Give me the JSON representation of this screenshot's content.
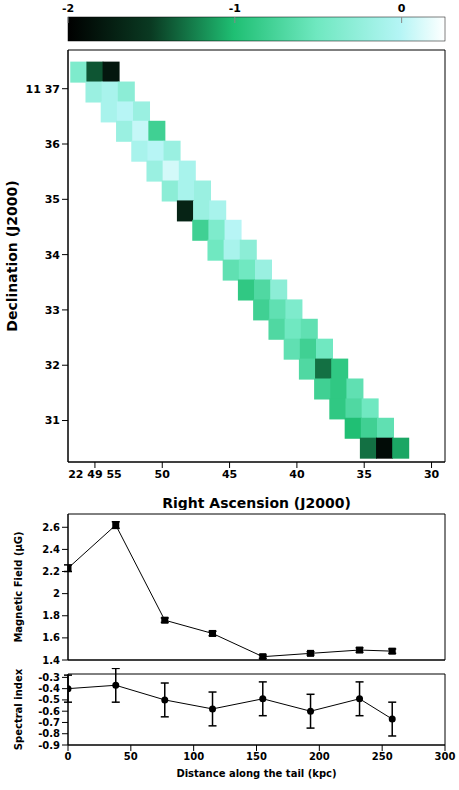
{
  "chart_data": [
    {
      "type": "heatmap",
      "xlabel": "Right Ascension (J2000)",
      "ylabel": "Declination (J2000)",
      "xlim": [
        57,
        29
      ],
      "xticks": [
        {
          "value": 55,
          "label": "22 49 55"
        },
        50,
        45,
        40,
        35,
        30
      ],
      "ylim": [
        30.25,
        37.7
      ],
      "yticks": [
        31,
        32,
        33,
        34,
        35,
        36,
        {
          "value": 37,
          "label": "11 37"
        }
      ],
      "colorbar": {
        "range": [
          -2,
          0.26
        ],
        "ticks": [
          -2,
          -1,
          0
        ]
      },
      "cells": [
        [
          56.2,
          37.3,
          -0.4
        ],
        [
          55.0,
          37.3,
          -1.4
        ],
        [
          53.8,
          37.3,
          -1.8
        ],
        [
          55.07,
          36.94,
          -0.2
        ],
        [
          53.87,
          36.94,
          -0.1
        ],
        [
          52.67,
          36.94,
          -0.3
        ],
        [
          53.94,
          36.58,
          -0.1
        ],
        [
          52.74,
          36.58,
          0.0
        ],
        [
          51.54,
          36.58,
          -0.2
        ],
        [
          52.8,
          36.23,
          -0.2
        ],
        [
          51.6,
          36.23,
          0.05
        ],
        [
          50.4,
          36.23,
          -0.8
        ],
        [
          51.67,
          35.87,
          -0.1
        ],
        [
          50.47,
          35.87,
          0.0
        ],
        [
          49.27,
          35.87,
          -0.2
        ],
        [
          50.54,
          35.51,
          -0.2
        ],
        [
          49.34,
          35.51,
          0.1
        ],
        [
          48.14,
          35.51,
          -0.1
        ],
        [
          49.41,
          35.15,
          -0.3
        ],
        [
          48.21,
          35.15,
          -0.1
        ],
        [
          47.01,
          35.15,
          -0.2
        ],
        [
          48.28,
          34.79,
          -1.7
        ],
        [
          47.08,
          34.79,
          -0.2
        ],
        [
          45.88,
          34.79,
          -0.1
        ],
        [
          47.14,
          34.44,
          -0.8
        ],
        [
          45.94,
          34.44,
          -0.4
        ],
        [
          44.74,
          34.44,
          0.0
        ],
        [
          46.01,
          34.08,
          -0.5
        ],
        [
          44.81,
          34.08,
          -0.1
        ],
        [
          43.61,
          34.08,
          -0.3
        ],
        [
          44.88,
          33.72,
          -0.6
        ],
        [
          43.68,
          33.72,
          -0.5
        ],
        [
          42.48,
          33.72,
          -0.2
        ],
        [
          43.75,
          33.36,
          -0.9
        ],
        [
          42.55,
          33.36,
          -0.7
        ],
        [
          41.35,
          33.36,
          -0.3
        ],
        [
          42.62,
          33.0,
          -0.8
        ],
        [
          41.42,
          33.0,
          -0.6
        ],
        [
          40.22,
          33.0,
          -0.4
        ],
        [
          41.48,
          32.65,
          -0.7
        ],
        [
          40.28,
          32.65,
          -0.5
        ],
        [
          39.08,
          32.65,
          -0.6
        ],
        [
          40.35,
          32.29,
          -0.6
        ],
        [
          39.15,
          32.29,
          -0.8
        ],
        [
          37.95,
          32.29,
          -0.5
        ],
        [
          39.22,
          31.93,
          -0.7
        ],
        [
          38.02,
          31.93,
          -1.3
        ],
        [
          36.82,
          31.93,
          -0.9
        ],
        [
          38.09,
          31.57,
          -0.8
        ],
        [
          36.89,
          31.57,
          -0.9
        ],
        [
          35.69,
          31.57,
          -0.6
        ],
        [
          36.96,
          31.21,
          -0.9
        ],
        [
          35.76,
          31.21,
          -0.7
        ],
        [
          34.56,
          31.21,
          -0.5
        ],
        [
          35.82,
          30.86,
          -1.0
        ],
        [
          34.62,
          30.86,
          -0.8
        ],
        [
          33.42,
          30.86,
          -0.6
        ],
        [
          34.69,
          30.5,
          -1.3
        ],
        [
          33.49,
          30.5,
          -1.9
        ],
        [
          32.29,
          30.5,
          -1.1
        ]
      ]
    },
    {
      "type": "line",
      "ylabel": "Magnetic Field (μG)",
      "xlim": [
        0,
        300
      ],
      "xticks": [
        0,
        50,
        100,
        150,
        200,
        250,
        300
      ],
      "ylim": [
        1.4,
        2.72
      ],
      "yticks": [
        1.4,
        1.6,
        1.8,
        2,
        2.2,
        2.4,
        2.6
      ],
      "tick_labels": "y",
      "x": [
        0,
        38,
        77,
        115,
        155,
        193,
        232,
        258
      ],
      "values": [
        2.23,
        2.62,
        1.76,
        1.64,
        1.43,
        1.46,
        1.49,
        1.48
      ],
      "errors": [
        0.03,
        0.03,
        0.02,
        0.02,
        0.015,
        0.015,
        0.02,
        0.02
      ],
      "marker": "square",
      "color": "#000000"
    },
    {
      "type": "line",
      "ylabel": "Spectral index",
      "xlabel": "Distance along the tail (kpc)",
      "xlim": [
        0,
        300
      ],
      "xticks": [
        0,
        50,
        100,
        150,
        200,
        250,
        300
      ],
      "ylim": [
        -0.9,
        -0.27
      ],
      "yticks": [
        -0.3,
        -0.4,
        -0.5,
        -0.6,
        -0.7,
        -0.8,
        -0.9
      ],
      "x": [
        0,
        38,
        77,
        115,
        155,
        193,
        232,
        258
      ],
      "values": [
        -0.4,
        -0.37,
        -0.5,
        -0.58,
        -0.49,
        -0.6,
        -0.49,
        -0.67
      ],
      "errors": [
        0.12,
        0.15,
        0.15,
        0.15,
        0.15,
        0.15,
        0.15,
        0.15
      ],
      "marker": "circle",
      "color": "#000000"
    }
  ]
}
